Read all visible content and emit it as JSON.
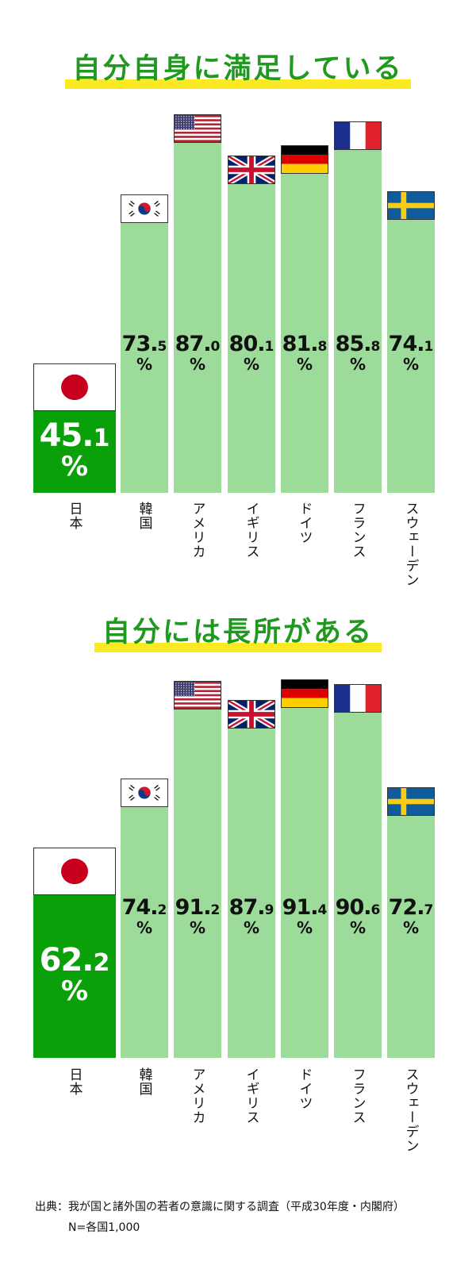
{
  "chart_data": [
    {
      "type": "bar",
      "title": "自分自身に満足している",
      "categories": [
        "日本",
        "韓国",
        "アメリカ",
        "イギリス",
        "ドイツ",
        "フランス",
        "スウェーデン"
      ],
      "flags": [
        "japan-flag-icon",
        "korea-flag-icon",
        "usa-flag-icon",
        "uk-flag-icon",
        "germany-flag-icon",
        "france-flag-icon",
        "sweden-flag-icon"
      ],
      "values": [
        45.1,
        73.5,
        87.0,
        80.1,
        81.8,
        85.8,
        74.1
      ],
      "unit": "%",
      "highlight_color": "#0aa00a",
      "bar_color": "#9ddb9a"
    },
    {
      "type": "bar",
      "title": "自分には長所がある",
      "categories": [
        "日本",
        "韓国",
        "アメリカ",
        "イギリス",
        "ドイツ",
        "フランス",
        "スウェーデン"
      ],
      "flags": [
        "japan-flag-icon",
        "korea-flag-icon",
        "usa-flag-icon",
        "uk-flag-icon",
        "germany-flag-icon",
        "france-flag-icon",
        "sweden-flag-icon"
      ],
      "values": [
        62.2,
        74.2,
        91.2,
        87.9,
        91.4,
        90.6,
        72.7
      ],
      "unit": "%",
      "highlight_color": "#0aa00a",
      "bar_color": "#9ddb9a"
    }
  ],
  "source": {
    "line1": "出典：我が国と諸外国の若者の意識に関する調査（平成30年度・内閣府）",
    "line2": "N=各国1,000"
  }
}
